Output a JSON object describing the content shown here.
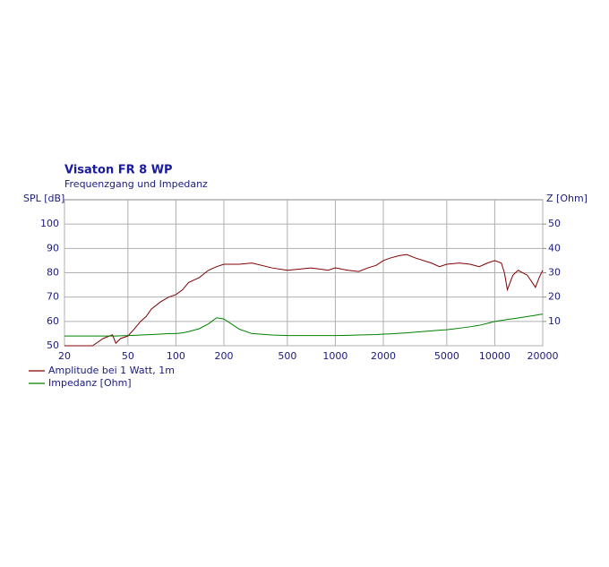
{
  "chart_data": {
    "type": "line",
    "title": "Visaton FR 8 WP",
    "subtitle": "Frequenzgang und Impedanz",
    "ylabel": "SPL [dB]",
    "y2label": "Z [Ohm]",
    "xscale": "log",
    "grid": true,
    "legend": "bottom-left",
    "x": [
      20,
      30,
      35,
      40,
      42,
      45,
      50,
      55,
      60,
      65,
      70,
      80,
      90,
      100,
      110,
      120,
      140,
      160,
      180,
      200,
      250,
      300,
      400,
      500,
      600,
      700,
      800,
      900,
      1000,
      1200,
      1400,
      1600,
      1800,
      2000,
      2200,
      2500,
      2800,
      3200,
      4000,
      4500,
      5000,
      6000,
      7000,
      8000,
      9000,
      10000,
      11000,
      11500,
      12000,
      13000,
      14000,
      16000,
      18000,
      19000,
      20000
    ],
    "series": [
      {
        "name": "Amplitude bei 1 Watt, 1m",
        "color": "#800000",
        "axis": "y",
        "values": [
          50,
          50,
          53,
          54.5,
          51,
          53,
          54,
          57,
          60,
          62,
          65,
          68,
          70,
          71,
          73,
          76,
          78,
          81,
          82.5,
          83.5,
          83.5,
          84,
          82,
          81,
          81.5,
          82,
          81.5,
          81,
          82,
          81,
          80.5,
          82,
          83,
          85,
          86,
          87,
          87.5,
          86,
          84,
          82.5,
          83.5,
          84,
          83.5,
          82.5,
          84,
          85,
          84,
          80,
          73,
          79,
          81,
          79,
          74,
          78,
          81
        ]
      },
      {
        "name": "Impedanz [Ohm]",
        "color": "#008000",
        "axis": "y2",
        "values": [
          4,
          4,
          4,
          4,
          4,
          4.1,
          4.2,
          4.3,
          4.4,
          4.5,
          4.6,
          4.8,
          5,
          5,
          5.3,
          5.8,
          7,
          9,
          11.5,
          11,
          6.8,
          5,
          4.4,
          4.2,
          4.2,
          4.2,
          4.2,
          4.2,
          4.2,
          4.3,
          4.4,
          4.5,
          4.6,
          4.8,
          4.9,
          5.1,
          5.3,
          5.6,
          6.1,
          6.4,
          6.6,
          7.2,
          7.8,
          8.4,
          9.2,
          10,
          10.4,
          10.6,
          10.8,
          11.1,
          11.4,
          12,
          12.5,
          12.8,
          13
        ]
      }
    ],
    "xlim": [
      20,
      20000
    ],
    "xticks": [
      20,
      50,
      100,
      200,
      500,
      1000,
      2000,
      5000,
      10000,
      20000
    ],
    "ylim": [
      50,
      110
    ],
    "yticks": [
      50,
      60,
      70,
      80,
      90,
      100
    ],
    "y2lim": [
      0,
      60
    ],
    "y2ticks": [
      10,
      20,
      30,
      40,
      50
    ]
  }
}
